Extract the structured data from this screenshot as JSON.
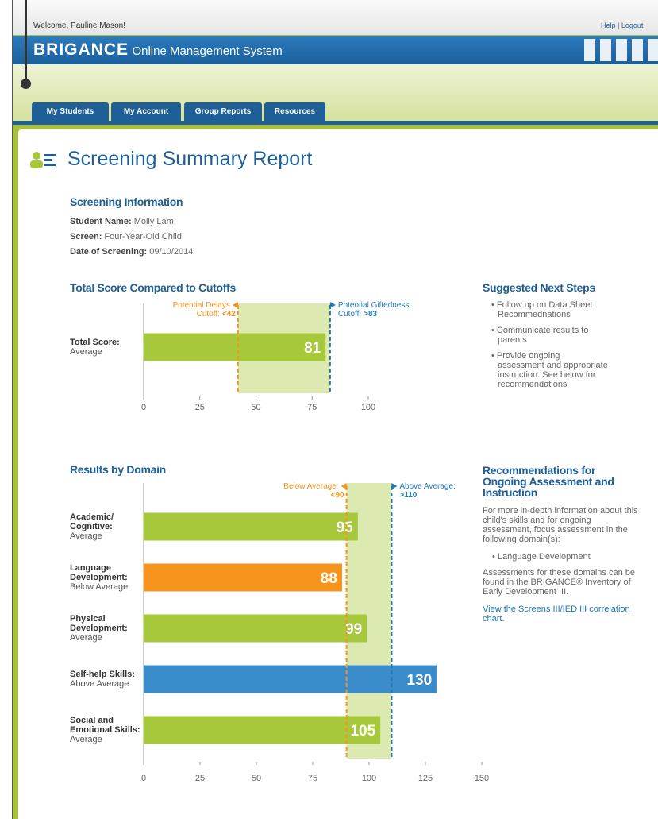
{
  "header": {
    "welcome": "Welcome, Pauline Mason!",
    "help": "Help",
    "separator": "|",
    "logout": "Logout",
    "brand": "BRIGANCE",
    "brand_sub": "Online Management System"
  },
  "tabs": [
    "My Students",
    "My Account",
    "Group Reports",
    "Resources"
  ],
  "title": "Screening Summary Report",
  "screening_info": {
    "heading": "Screening Information",
    "fields": [
      {
        "label": "Student Name:",
        "value": "Molly Lam"
      },
      {
        "label": "Screen:",
        "value": "Four-Year-Old Child"
      },
      {
        "label": "Date of Screening:",
        "value": "09/10/2014"
      }
    ]
  },
  "chart_data": [
    {
      "type": "bar",
      "orientation": "horizontal",
      "title": "Total Score Compared to Cutoffs",
      "categories": [
        "Total Score:"
      ],
      "sublabels": [
        "Average"
      ],
      "values": [
        81
      ],
      "colors": [
        "#a8c83c"
      ],
      "xlim": [
        0,
        100
      ],
      "xticks": [
        0,
        25,
        50,
        75,
        100
      ],
      "cutoffs": [
        {
          "name": "Potential Delays",
          "prefix": "Cutoff:",
          "value": 42,
          "label": "<42",
          "color": "#f7941d"
        },
        {
          "name": "Potential Giftedness",
          "prefix": "Cutoff:",
          "value": 83,
          "label": ">83",
          "color": "#1f78b4"
        }
      ]
    },
    {
      "type": "bar",
      "orientation": "horizontal",
      "title": "Results by Domain",
      "categories": [
        "Academic/ Cognitive:",
        "Language Development:",
        "Physical Development:",
        "Self-help Skills:",
        "Social and Emotional Skills:"
      ],
      "sublabels": [
        "Average",
        "Below Average",
        "Average",
        "Above Average",
        "Average"
      ],
      "values": [
        95,
        88,
        99,
        130,
        105
      ],
      "colors": [
        "#a8c83c",
        "#f7941d",
        "#a8c83c",
        "#3b8ccb",
        "#a8c83c"
      ],
      "xlim": [
        0,
        150
      ],
      "xticks": [
        0,
        25,
        50,
        75,
        100,
        125,
        150
      ],
      "cutoffs": [
        {
          "name": "Below Average:",
          "value": 90,
          "label": "<90",
          "color": "#f7941d"
        },
        {
          "name": "Above Average:",
          "value": 110,
          "label": ">110",
          "color": "#1f78b4"
        }
      ]
    }
  ],
  "next_steps": {
    "heading": "Suggested Next Steps",
    "items": [
      "Follow up on Data Sheet Recommednations",
      "Communicate results to parents",
      "Provide ongoing assessment and appropriate instruction. See below for recommendations"
    ]
  },
  "recommendations": {
    "heading": "Recommendations for Ongoing Assessment and Instruction",
    "intro": "For more in-depth information about this child's skills and for ongoing assessment, focus assessment in the following domain(s):",
    "items": [
      "Language Development"
    ],
    "note": "Assessments for these domains can be found in the BRIGANCE® Inventory of Early Development III.",
    "link": "View the Screens III/IED III correlation chart."
  }
}
